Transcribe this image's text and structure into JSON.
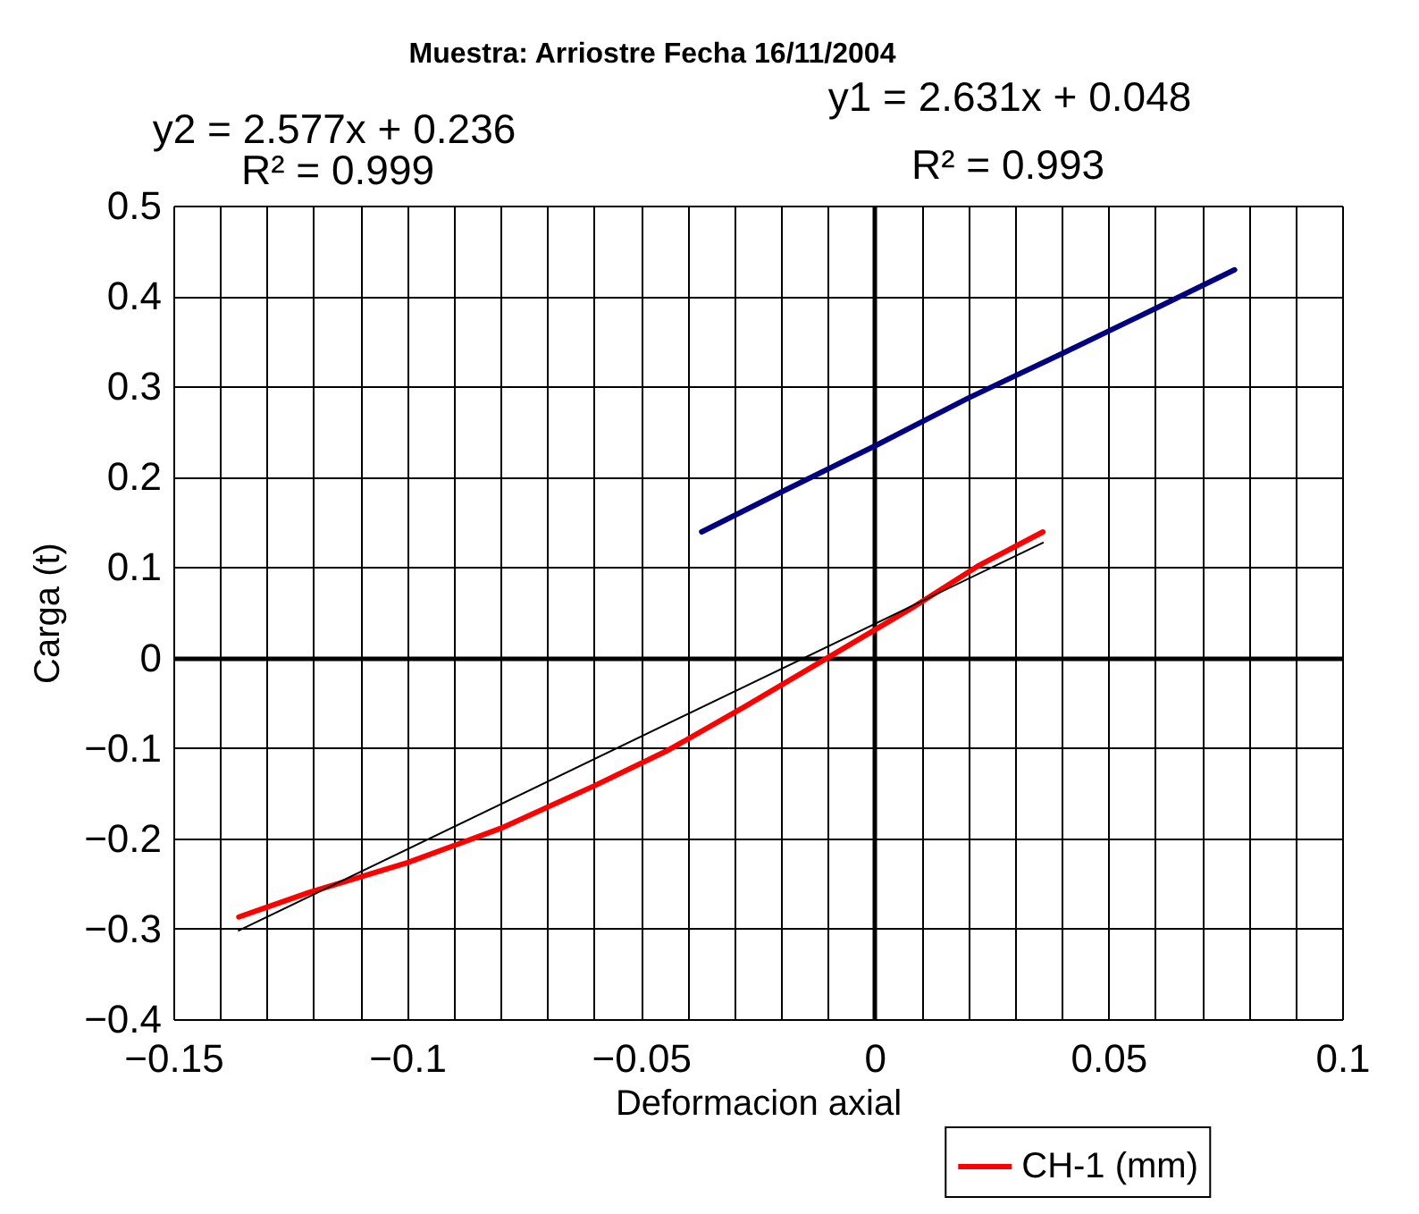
{
  "chart_data": {
    "type": "line",
    "title": "Muestra: Arriostre      Fecha 16/11/2004",
    "xlabel": "Deformacion axial",
    "ylabel": "Carga (t)",
    "annotations": [
      "y2 = 2.577x + 0.236",
      "R² = 0.999",
      "y1 = 2.631x + 0.048",
      "R² = 0.993"
    ],
    "xlim": [
      -0.15,
      0.1
    ],
    "xticks": [
      -0.15,
      {
        "value": -0.14,
        "label": null
      },
      {
        "value": -0.13,
        "label": null
      },
      {
        "value": -0.12,
        "label": null
      },
      {
        "value": -0.11,
        "label": null
      },
      -0.1,
      {
        "value": -0.09,
        "label": null
      },
      {
        "value": -0.08,
        "label": null
      },
      {
        "value": -0.07,
        "label": null
      },
      {
        "value": -0.06,
        "label": null
      },
      -0.05,
      {
        "value": -0.04,
        "label": null
      },
      {
        "value": -0.03,
        "label": null
      },
      {
        "value": -0.02,
        "label": null
      },
      {
        "value": -0.01,
        "label": null
      },
      0,
      {
        "value": 0.01,
        "label": null
      },
      {
        "value": 0.02,
        "label": null
      },
      {
        "value": 0.03,
        "label": null
      },
      {
        "value": 0.04,
        "label": null
      },
      0.05,
      {
        "value": 0.06,
        "label": null
      },
      {
        "value": 0.07,
        "label": null
      },
      {
        "value": 0.08,
        "label": null
      },
      {
        "value": 0.09,
        "label": null
      },
      0.1
    ],
    "ylim": [
      -0.4,
      0.5
    ],
    "yticks": [
      -0.4,
      -0.3,
      -0.2,
      -0.1,
      0,
      0.1,
      0.2,
      0.3,
      0.4,
      0.5
    ],
    "grid": true,
    "legend": "bottom",
    "marker": "none",
    "line_style": "solid",
    "series": [
      {
        "color": "#000080",
        "x": [
          -0.037,
          -0.02,
          0,
          0.02,
          0.04,
          0.06,
          0.077
        ],
        "values": [
          0.139,
          0.183,
          0.234,
          0.287,
          0.336,
          0.386,
          0.429
        ]
      },
      {
        "name": "CH-1 (mm)",
        "color": "#ff0000",
        "x": [
          -0.136,
          -0.121,
          -0.1,
          -0.08,
          -0.06,
          -0.044,
          -0.028,
          -0.01,
          0.008,
          0.022,
          0.036
        ],
        "values": [
          -0.287,
          -0.26,
          -0.227,
          -0.189,
          -0.142,
          -0.102,
          -0.055,
          0,
          0.055,
          0.101,
          0.139
        ]
      },
      {
        "color": "#000000",
        "x": [
          -0.136,
          0.036
        ],
        "values": [
          -0.302,
          0.127
        ]
      }
    ]
  }
}
